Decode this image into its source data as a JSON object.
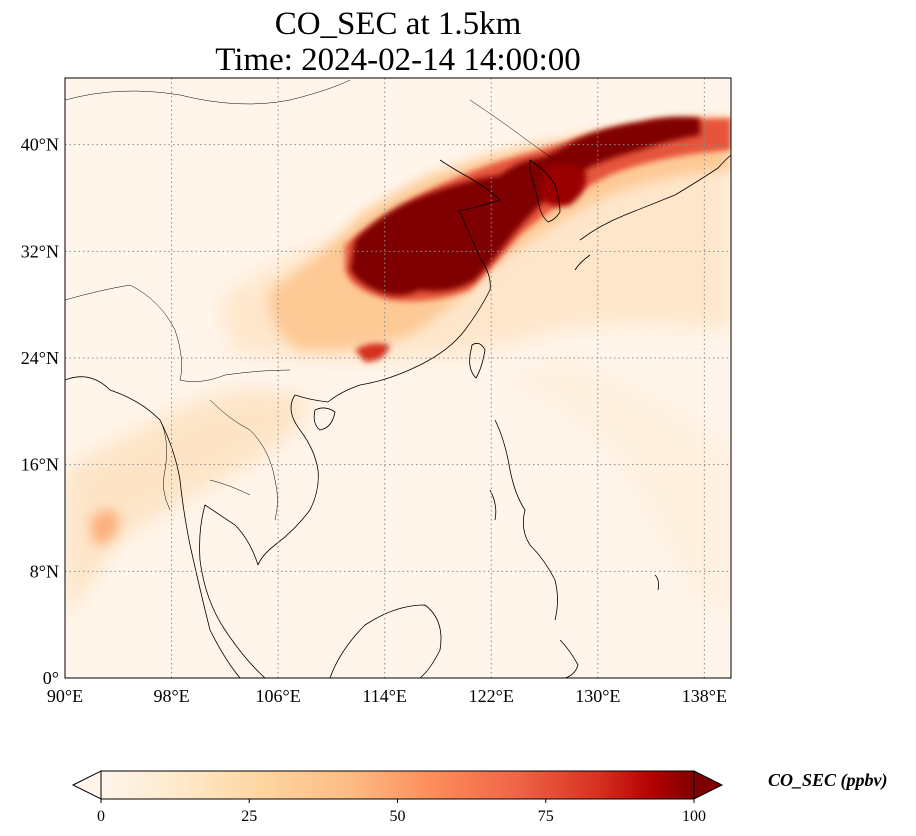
{
  "title_line1": "CO_SEC at 1.5km",
  "title_line2": "Time: 2024-02-14 14:00:00",
  "map": {
    "lon_range": [
      90,
      140
    ],
    "lat_range": [
      0,
      45
    ],
    "lon_ticks": [
      {
        "value": 90,
        "label": "90°E"
      },
      {
        "value": 98,
        "label": "98°E"
      },
      {
        "value": 106,
        "label": "106°E"
      },
      {
        "value": 114,
        "label": "114°E"
      },
      {
        "value": 122,
        "label": "122°E"
      },
      {
        "value": 130,
        "label": "130°E"
      },
      {
        "value": 138,
        "label": "138°E"
      }
    ],
    "lat_ticks": [
      {
        "value": 0,
        "label": "0°"
      },
      {
        "value": 8,
        "label": "8°N"
      },
      {
        "value": 16,
        "label": "16°N"
      },
      {
        "value": 24,
        "label": "24°N"
      },
      {
        "value": 32,
        "label": "32°N"
      },
      {
        "value": 40,
        "label": "40°N"
      }
    ],
    "gridlines": "dotted"
  },
  "colorbar": {
    "label": "CO_SEC (ppbv)",
    "range": [
      0,
      100
    ],
    "ticks": [
      {
        "value": 0,
        "label": "0"
      },
      {
        "value": 25,
        "label": "25"
      },
      {
        "value": 50,
        "label": "50"
      },
      {
        "value": 75,
        "label": "75"
      },
      {
        "value": 100,
        "label": "100"
      }
    ],
    "extend": "both",
    "colors": [
      "#fff5eb",
      "#fdd49e",
      "#fdbb84",
      "#fc8d59",
      "#ef6548",
      "#d7301f",
      "#b30000",
      "#7f0000"
    ]
  }
}
